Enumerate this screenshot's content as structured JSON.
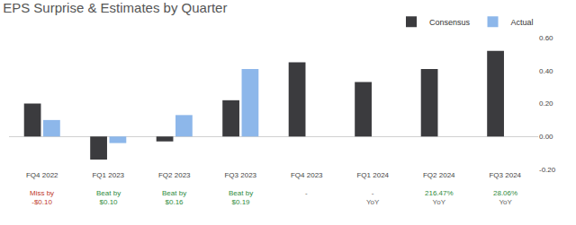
{
  "chart_data": {
    "type": "bar",
    "title": "EPS Surprise & Estimates by Quarter",
    "categories": [
      "FQ4 2022",
      "FQ1 2023",
      "FQ2 2023",
      "FQ3 2023",
      "FQ4 2023",
      "FQ1 2024",
      "FQ2 2024",
      "FQ3 2024"
    ],
    "series": [
      {
        "name": "Consensus",
        "color": "#3b3b3e",
        "values": [
          0.2,
          -0.14,
          -0.03,
          0.22,
          0.45,
          0.33,
          0.41,
          0.52
        ]
      },
      {
        "name": "Actual",
        "color": "#8db7ea",
        "values": [
          0.1,
          -0.04,
          0.13,
          0.41,
          null,
          null,
          null,
          null
        ]
      }
    ],
    "annotations": [
      {
        "category": "FQ4 2022",
        "lines": [
          {
            "text": "Miss by",
            "color": "#c0392b"
          },
          {
            "text": "-$0.10",
            "color": "#c0392b"
          }
        ]
      },
      {
        "category": "FQ1 2023",
        "lines": [
          {
            "text": "Beat by",
            "color": "#2e8b3d"
          },
          {
            "text": "$0.10",
            "color": "#2e8b3d"
          }
        ]
      },
      {
        "category": "FQ2 2023",
        "lines": [
          {
            "text": "Beat by",
            "color": "#2e8b3d"
          },
          {
            "text": "$0.16",
            "color": "#2e8b3d"
          }
        ]
      },
      {
        "category": "FQ3 2023",
        "lines": [
          {
            "text": "Beat by",
            "color": "#2e8b3d"
          },
          {
            "text": "$0.19",
            "color": "#2e8b3d"
          }
        ]
      },
      {
        "category": "FQ4 2023",
        "lines": [
          {
            "text": "-",
            "color": "#666666"
          }
        ]
      },
      {
        "category": "FQ1 2024",
        "lines": [
          {
            "text": "-",
            "color": "#666666"
          },
          {
            "text": "YoY",
            "color": "#666666"
          }
        ]
      },
      {
        "category": "FQ2 2024",
        "lines": [
          {
            "text": "216.47%",
            "color": "#2e8b3d"
          },
          {
            "text": "YoY",
            "color": "#666666"
          }
        ]
      },
      {
        "category": "FQ3 2024",
        "lines": [
          {
            "text": "28.06%",
            "color": "#2e8b3d"
          },
          {
            "text": "YoY",
            "color": "#666666"
          }
        ]
      }
    ],
    "ylim": [
      -0.2,
      0.6
    ],
    "yticks": [
      {
        "value": -0.2,
        "label": "-0.20"
      },
      {
        "value": 0,
        "label": "0.00"
      },
      {
        "value": 0.2,
        "label": "0.20"
      },
      {
        "value": 0.4,
        "label": "0.40"
      },
      {
        "value": 0.6,
        "label": "0.60"
      }
    ],
    "grid": false,
    "legend": "top-right"
  }
}
